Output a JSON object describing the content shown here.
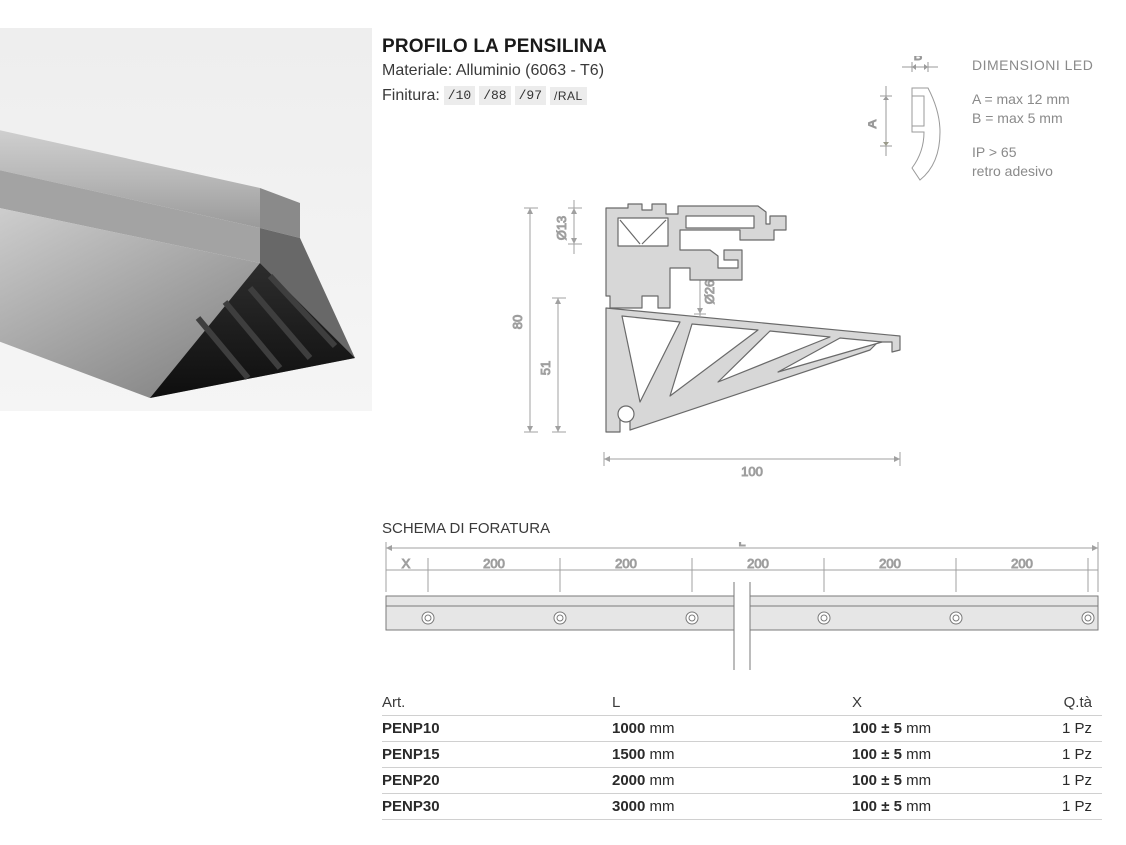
{
  "header": {
    "title": "PROFILO LA PENSILINA",
    "material_label": "Materiale:",
    "material_value": "Alluminio (6063 - T6)",
    "finish_label": "Finitura:",
    "finish_options": [
      "/10",
      "/88",
      "/97",
      "/RAL"
    ]
  },
  "led": {
    "heading": "DIMENSIONI LED",
    "line_a": "A = max 12 mm",
    "line_b": "B = max 5 mm",
    "ip": "IP > 65",
    "adhesive": "retro adesivo",
    "label_a": "A",
    "label_b": "B"
  },
  "section": {
    "dims": {
      "d13": "Ø13",
      "d26": "Ø26",
      "h80": "80",
      "h51": "51",
      "w100": "100"
    },
    "profile_fill": "#d7d7d7",
    "profile_stroke": "#6a6a6a",
    "dimension_stroke": "#a0a0a0"
  },
  "schema": {
    "title": "SCHEMA DI FORATURA",
    "labels": {
      "L": "L",
      "X": "X",
      "seg": "200"
    },
    "bar_fill": "#e6e6e6",
    "bar_stroke": "#7a7a7a",
    "hole_stroke": "#7a7a7a"
  },
  "table": {
    "columns": [
      "Art.",
      "L",
      "X",
      "Q.tà"
    ],
    "rows": [
      {
        "art": "PENP10",
        "l": "1000",
        "l_unit": "mm",
        "x": "100 ± 5",
        "x_unit": "mm",
        "q": "1 Pz"
      },
      {
        "art": "PENP15",
        "l": "1500",
        "l_unit": "mm",
        "x": "100 ± 5",
        "x_unit": "mm",
        "q": "1 Pz"
      },
      {
        "art": "PENP20",
        "l": "2000",
        "l_unit": "mm",
        "x": "100 ± 5",
        "x_unit": "mm",
        "q": "1 Pz"
      },
      {
        "art": "PENP30",
        "l": "3000",
        "l_unit": "mm",
        "x": "100 ± 5",
        "x_unit": "mm",
        "q": "1 Pz"
      }
    ]
  },
  "colors": {
    "text": "#1a1a1a",
    "muted": "#8a8a8a",
    "chip_bg": "#ececec",
    "rule": "#d0d0d0"
  }
}
